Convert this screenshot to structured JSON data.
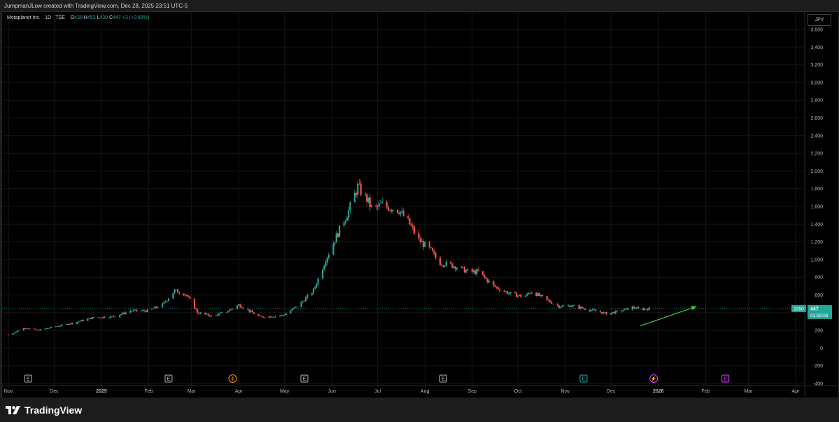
{
  "header": {
    "caption": "JumpmanJLow created with TradingView.com, Dec 28, 2025 23:51 UTC-5"
  },
  "legend": {
    "symbol": "Metaplanet Inc. · 1D · TSE",
    "open_label": "O",
    "open": "438",
    "high_label": "H",
    "high": "453",
    "low_label": "L",
    "low": "430",
    "close_label": "C",
    "close": "447",
    "change": "+3 (+0.68%)"
  },
  "currency": "JPY",
  "price_tag": {
    "value": "447",
    "countdown": "01:59:03",
    "side_value": "3350"
  },
  "footer": {
    "brand": "TradingView"
  },
  "colors": {
    "up": "#26a69a",
    "down": "#ef5350",
    "arrow": "#3ec43a",
    "grid": "#161616",
    "axis_text": "#b2b5be"
  },
  "chart_data": {
    "type": "candlestick",
    "ylim": [
      -400,
      3600
    ],
    "y_ticks": [
      -400,
      -200,
      0,
      200,
      400,
      600,
      800,
      1000,
      1200,
      1400,
      1600,
      1800,
      2000,
      2200,
      2400,
      2600,
      2800,
      3000,
      3200,
      3400,
      3600
    ],
    "y_tick_labels": [
      "-400",
      "-200",
      "0",
      "200",
      "400",
      "600",
      "800",
      "1,000",
      "1,200",
      "1,400",
      "1,600",
      "1,800",
      "2,000",
      "2,200",
      "2,400",
      "2,600",
      "2,800",
      "3,000",
      "3,200",
      "3,400",
      "3,600"
    ],
    "x_labels": [
      {
        "label": "Nov",
        "date": "2024-11-01"
      },
      {
        "label": "Dec",
        "date": "2024-12-01"
      },
      {
        "label": "2025",
        "date": "2025-01-01",
        "bold": true
      },
      {
        "label": "Feb",
        "date": "2025-02-01"
      },
      {
        "label": "Mar",
        "date": "2025-03-01"
      },
      {
        "label": "Apr",
        "date": "2025-04-01"
      },
      {
        "label": "May",
        "date": "2025-05-01"
      },
      {
        "label": "Jun",
        "date": "2025-06-01"
      },
      {
        "label": "Jul",
        "date": "2025-07-01"
      },
      {
        "label": "Aug",
        "date": "2025-08-01"
      },
      {
        "label": "Sep",
        "date": "2025-09-01"
      },
      {
        "label": "Oct",
        "date": "2025-10-01"
      },
      {
        "label": "Nov",
        "date": "2025-11-01"
      },
      {
        "label": "Dec",
        "date": "2025-12-01"
      },
      {
        "label": "2026",
        "date": "2026-01-01",
        "bold": true
      },
      {
        "label": "Feb",
        "date": "2026-02-01"
      },
      {
        "label": "Mar",
        "date": "2026-03-01"
      },
      {
        "label": "Apr",
        "date": "2026-04-01"
      }
    ],
    "last_price": 447,
    "price_anchors": [
      [
        "2024-11-01",
        150
      ],
      [
        "2024-11-12",
        230
      ],
      [
        "2024-11-20",
        200
      ],
      [
        "2024-12-01",
        240
      ],
      [
        "2024-12-15",
        290
      ],
      [
        "2024-12-25",
        340
      ],
      [
        "2025-01-10",
        360
      ],
      [
        "2025-01-20",
        420
      ],
      [
        "2025-01-31",
        420
      ],
      [
        "2025-02-10",
        490
      ],
      [
        "2025-02-18",
        650
      ],
      [
        "2025-02-25",
        610
      ],
      [
        "2025-03-01",
        520
      ],
      [
        "2025-03-05",
        400
      ],
      [
        "2025-03-15",
        360
      ],
      [
        "2025-03-25",
        420
      ],
      [
        "2025-04-01",
        490
      ],
      [
        "2025-04-08",
        420
      ],
      [
        "2025-04-15",
        350
      ],
      [
        "2025-04-30",
        370
      ],
      [
        "2025-05-10",
        480
      ],
      [
        "2025-05-20",
        650
      ],
      [
        "2025-05-28",
        1000
      ],
      [
        "2025-06-05",
        1300
      ],
      [
        "2025-06-12",
        1550
      ],
      [
        "2025-06-18",
        1820
      ],
      [
        "2025-06-24",
        1680
      ],
      [
        "2025-06-28",
        1550
      ],
      [
        "2025-07-03",
        1620
      ],
      [
        "2025-07-15",
        1560
      ],
      [
        "2025-07-22",
        1400
      ],
      [
        "2025-07-28",
        1220
      ],
      [
        "2025-08-05",
        1100
      ],
      [
        "2025-08-10",
        970
      ],
      [
        "2025-08-20",
        930
      ],
      [
        "2025-08-30",
        860
      ],
      [
        "2025-09-05",
        860
      ],
      [
        "2025-09-15",
        700
      ],
      [
        "2025-09-25",
        620
      ],
      [
        "2025-10-05",
        580
      ],
      [
        "2025-10-10",
        640
      ],
      [
        "2025-10-18",
        560
      ],
      [
        "2025-10-28",
        470
      ],
      [
        "2025-11-05",
        480
      ],
      [
        "2025-11-15",
        440
      ],
      [
        "2025-11-28",
        390
      ],
      [
        "2025-12-05",
        410
      ],
      [
        "2025-12-15",
        460
      ],
      [
        "2025-12-20",
        440
      ],
      [
        "2025-12-28",
        447
      ]
    ],
    "annotations": [
      {
        "kind": "arrow",
        "from": [
          "2025-12-20",
          250
        ],
        "to": [
          "2026-01-26",
          470
        ]
      },
      {
        "kind": "event",
        "icon": "earnings",
        "symbol": "E",
        "date": "2024-11-14"
      },
      {
        "kind": "event",
        "icon": "earnings",
        "symbol": "E",
        "date": "2025-02-14"
      },
      {
        "kind": "event",
        "icon": "dividend",
        "symbol": "$",
        "date": "2025-03-28"
      },
      {
        "kind": "event",
        "icon": "earnings",
        "symbol": "E",
        "date": "2025-05-14"
      },
      {
        "kind": "event",
        "icon": "earnings",
        "symbol": "E",
        "date": "2025-08-13"
      },
      {
        "kind": "event",
        "icon": "earnings",
        "symbol": "E",
        "date": "2025-11-13"
      },
      {
        "kind": "event",
        "icon": "split",
        "symbol": "⚡",
        "date": "2025-12-29"
      },
      {
        "kind": "event",
        "icon": "earnings",
        "symbol": "E",
        "date": "2026-02-14"
      }
    ]
  }
}
